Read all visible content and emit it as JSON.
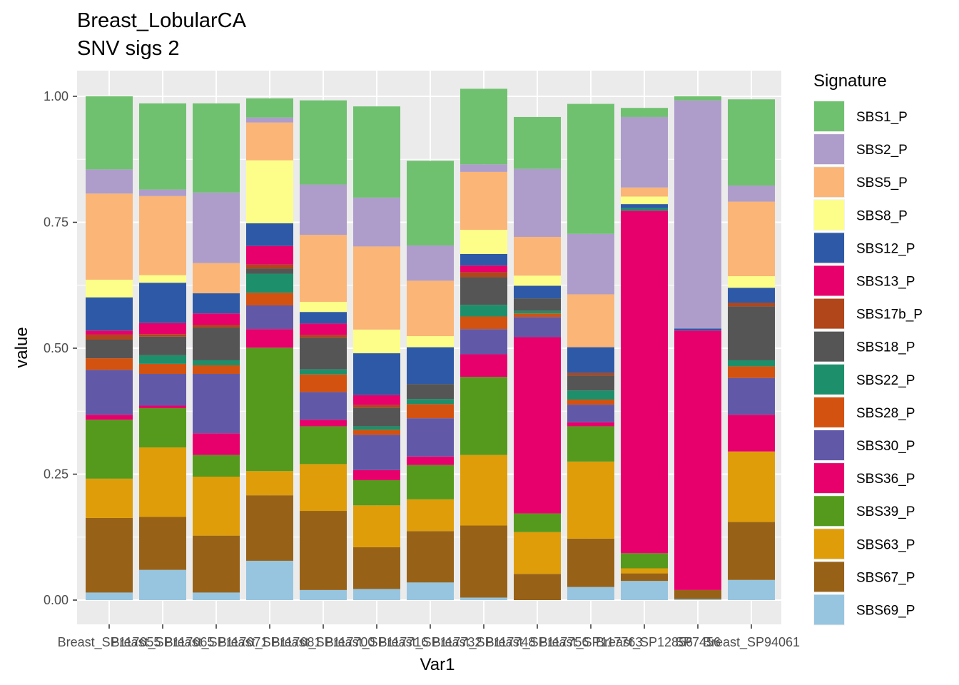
{
  "chart_data": {
    "type": "bar",
    "stacked": true,
    "title": "Breast_LobularCA",
    "subtitle": "SNV sigs 2",
    "xlabel": "Var1",
    "ylabel": "value",
    "ylim": [
      0,
      1
    ],
    "yticks": [
      "0.00",
      "0.25",
      "0.50",
      "0.75",
      "1.00"
    ],
    "grid": true,
    "legend": {
      "title": "Signature",
      "position": "right"
    },
    "categories": [
      "SP117655",
      "SP117665",
      "SP117671",
      "SP117681",
      "SP117700",
      "SP117716",
      "SP117732",
      "SP117748",
      "SP117756",
      "SP117763",
      "SP12856",
      "SP7456",
      "SP94061"
    ],
    "tick_labels": [
      "Breast_SP117655",
      "Breast_SP117665",
      "Breast_SP117671",
      "Breast_SP117681",
      "Breast_SP117700",
      "Breast_SP117716",
      "Breast_SP117732",
      "Breast_SP117748",
      "Breast_SP117756",
      "Breast_SP117763",
      "Breast_SP12856",
      "SP7456",
      "Breast_SP94061"
    ],
    "series": [
      {
        "name": "SBS1_P",
        "color": "#6FC16F",
        "values": [
          0.145,
          0.171,
          0.177,
          0.038,
          0.167,
          0.181,
          0.168,
          0.15,
          0.103,
          0.258,
          0.018,
          0.008,
          0.171
        ]
      },
      {
        "name": "SBS2_P",
        "color": "#AE9DCA",
        "values": [
          0.048,
          0.013,
          0.14,
          0.01,
          0.1,
          0.097,
          0.07,
          0.015,
          0.135,
          0.12,
          0.14,
          0.453,
          0.032
        ]
      },
      {
        "name": "SBS5_P",
        "color": "#FAB577",
        "values": [
          0.171,
          0.157,
          0.06,
          0.075,
          0.133,
          0.165,
          0.11,
          0.115,
          0.077,
          0.105,
          0.018,
          0.0,
          0.148
        ]
      },
      {
        "name": "SBS8_P",
        "color": "#FDFE8A",
        "values": [
          0.035,
          0.015,
          0.0,
          0.125,
          0.02,
          0.047,
          0.022,
          0.048,
          0.02,
          0.0,
          0.015,
          0.0,
          0.023
        ]
      },
      {
        "name": "SBS12_P",
        "color": "#2E59A6",
        "values": [
          0.066,
          0.08,
          0.04,
          0.045,
          0.023,
          0.083,
          0.073,
          0.023,
          0.025,
          0.051,
          0.008,
          0.004,
          0.03
        ]
      },
      {
        "name": "SBS13_P",
        "color": "#E7006B",
        "values": [
          0.008,
          0.022,
          0.023,
          0.037,
          0.023,
          0.02,
          0.0,
          0.013,
          0.0,
          0.0,
          0.0,
          0.0,
          0.0
        ]
      },
      {
        "name": "SBS17b_P",
        "color": "#B0461A",
        "values": [
          0.01,
          0.005,
          0.005,
          0.008,
          0.005,
          0.005,
          0.0,
          0.01,
          0.0,
          0.005,
          0.0,
          0.0,
          0.007
        ]
      },
      {
        "name": "SBS18_P",
        "color": "#555555",
        "values": [
          0.037,
          0.037,
          0.065,
          0.01,
          0.063,
          0.037,
          0.03,
          0.055,
          0.025,
          0.03,
          0.0,
          0.0,
          0.107
        ]
      },
      {
        "name": "SBS22_P",
        "color": "#1D906B",
        "values": [
          0.0,
          0.017,
          0.01,
          0.038,
          0.01,
          0.007,
          0.01,
          0.023,
          0.005,
          0.018,
          0.005,
          0.0,
          0.012
        ]
      },
      {
        "name": "SBS28_P",
        "color": "#D35210",
        "values": [
          0.023,
          0.02,
          0.017,
          0.025,
          0.035,
          0.01,
          0.028,
          0.025,
          0.007,
          0.01,
          0.0,
          0.0,
          0.023
        ]
      },
      {
        "name": "SBS30_P",
        "color": "#6159A7",
        "values": [
          0.089,
          0.063,
          0.118,
          0.047,
          0.055,
          0.07,
          0.076,
          0.05,
          0.04,
          0.035,
          0.0,
          0.0,
          0.073
        ]
      },
      {
        "name": "SBS36_P",
        "color": "#E7006B",
        "values": [
          0.01,
          0.005,
          0.043,
          0.037,
          0.013,
          0.02,
          0.017,
          0.045,
          0.35,
          0.008,
          0.68,
          0.515,
          0.073
        ]
      },
      {
        "name": "SBS39_P",
        "color": "#559A1D",
        "values": [
          0.117,
          0.078,
          0.043,
          0.245,
          0.075,
          0.05,
          0.068,
          0.155,
          0.037,
          0.07,
          0.03,
          0.0,
          0.0
        ]
      },
      {
        "name": "SBS63_P",
        "color": "#DF9D09",
        "values": [
          0.078,
          0.138,
          0.117,
          0.048,
          0.093,
          0.083,
          0.063,
          0.14,
          0.083,
          0.153,
          0.01,
          0.0,
          0.14
        ]
      },
      {
        "name": "SBS67_P",
        "color": "#976218",
        "values": [
          0.148,
          0.105,
          0.113,
          0.13,
          0.157,
          0.083,
          0.102,
          0.143,
          0.052,
          0.096,
          0.015,
          0.018,
          0.115
        ]
      },
      {
        "name": "SBS69_P",
        "color": "#97C5DF",
        "values": [
          0.015,
          0.06,
          0.015,
          0.078,
          0.02,
          0.022,
          0.035,
          0.005,
          0.0,
          0.026,
          0.038,
          0.002,
          0.04
        ]
      }
    ]
  }
}
